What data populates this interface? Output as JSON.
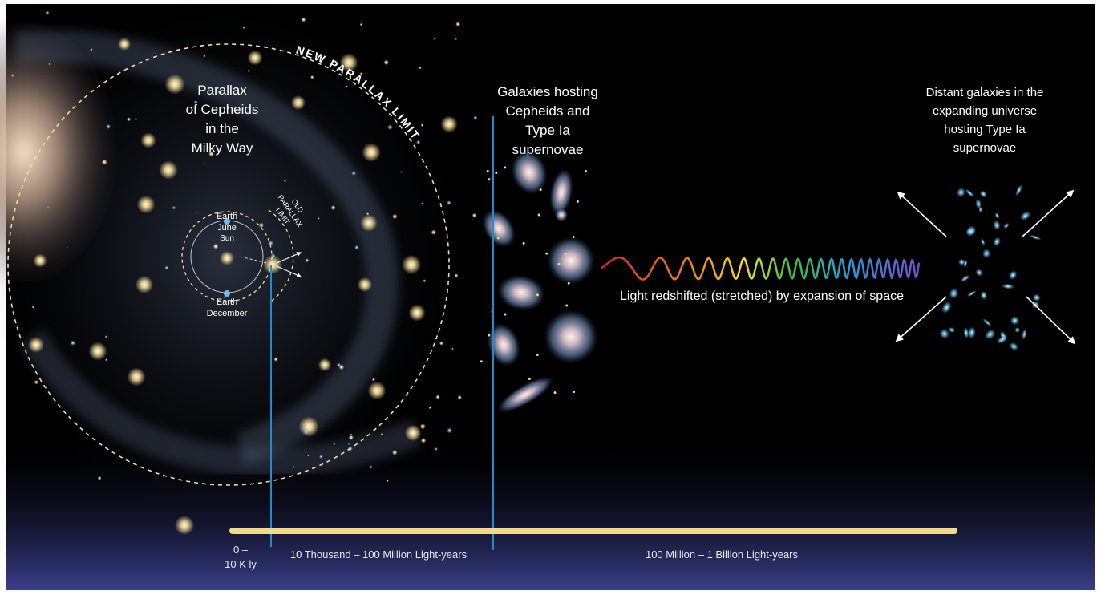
{
  "labels": {
    "new_parallax_limit": "NEW PARALLAX LIMIT",
    "old_parallax_limit": [
      "OLD",
      "PARALLAX",
      "LIMIT"
    ],
    "milky_way": [
      "Parallax",
      "of Cepheids",
      "in the",
      "Milky Way"
    ],
    "earth_june": [
      "Earth",
      "June"
    ],
    "sun": "Sun",
    "earth_december": [
      "Earth",
      "December"
    ],
    "nearby_galaxies": [
      "Galaxies hosting",
      "Cepheids and",
      "Type Ia",
      "supernovae"
    ],
    "distant_galaxies": [
      "Distant galaxies in the",
      "expanding universe",
      "hosting Type Ia",
      "supernovae"
    ],
    "redshift": "Light redshifted (stretched) by expansion of space"
  },
  "scale": {
    "near": [
      "0 –",
      "10 K ly"
    ],
    "middle": "10 Thousand – 100 Million Light-years",
    "far": "100 Million – 1 Billion Light-years"
  }
}
